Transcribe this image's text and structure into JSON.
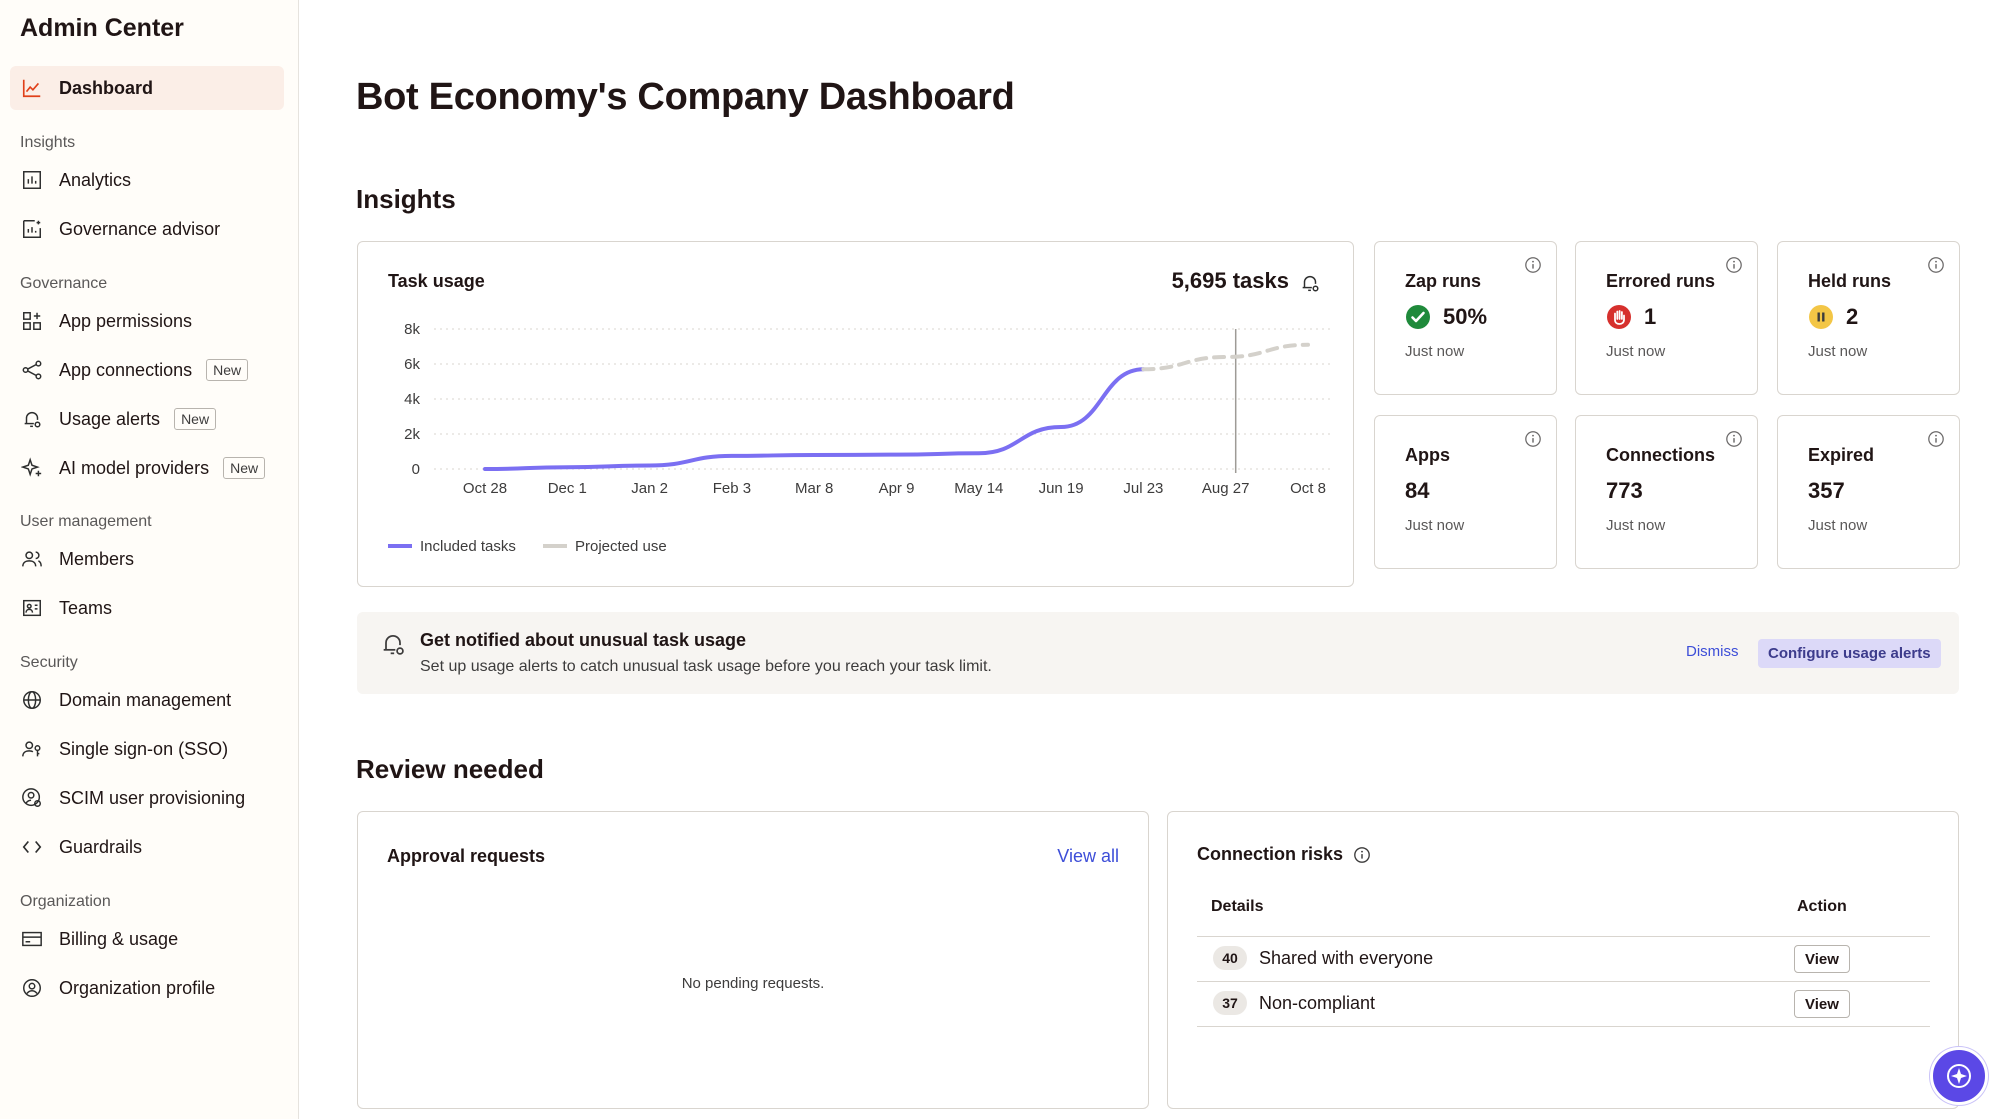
{
  "sidebar": {
    "title": "Admin Center",
    "dashboard": "Dashboard",
    "sections": {
      "insights": "Insights",
      "governance": "Governance",
      "user_management": "User management",
      "security": "Security",
      "organization": "Organization"
    },
    "items": {
      "analytics": "Analytics",
      "governance_advisor": "Governance advisor",
      "app_permissions": "App permissions",
      "app_connections": "App connections",
      "usage_alerts": "Usage alerts",
      "ai_model_providers": "AI model providers",
      "members": "Members",
      "teams": "Teams",
      "domain_management": "Domain management",
      "sso": "Single sign-on (SSO)",
      "scim": "SCIM user provisioning",
      "guardrails": "Guardrails",
      "billing": "Billing & usage",
      "org_profile": "Organization profile"
    },
    "badge_new": "New"
  },
  "page": {
    "title": "Bot Economy's Company Dashboard",
    "insights_heading": "Insights",
    "review_heading": "Review needed"
  },
  "task_usage": {
    "title": "Task usage",
    "total": "5,695 tasks"
  },
  "chart_data": {
    "type": "line",
    "x": [
      "Oct 28",
      "Dec 1",
      "Jan 2",
      "Feb 3",
      "Mar 8",
      "Apr 9",
      "May 14",
      "Jun 19",
      "Jul 23",
      "Aug 27",
      "Oct 8"
    ],
    "y_ticks": [
      "8k",
      "6k",
      "4k",
      "2k",
      "0"
    ],
    "ylim": [
      0,
      8000
    ],
    "series": [
      {
        "name": "Included tasks",
        "color": "#7b6ff2",
        "style": "solid",
        "points": [
          [
            "Oct 28",
            0
          ],
          [
            "Dec 1",
            100
          ],
          [
            "Jan 2",
            200
          ],
          [
            "Feb 3",
            750
          ],
          [
            "Mar 8",
            800
          ],
          [
            "Apr 9",
            820
          ],
          [
            "May 14",
            900
          ],
          [
            "Jun 19",
            2400
          ],
          [
            "Jul 23",
            5700
          ]
        ]
      },
      {
        "name": "Projected use",
        "color": "#d4d1cb",
        "style": "dashed",
        "points": [
          [
            "Jul 23",
            5700
          ],
          [
            "Aug 27",
            6400
          ],
          [
            "Oct 8",
            7100
          ]
        ]
      }
    ],
    "marker_at": "Aug 27",
    "grid": true,
    "legend": "bottom-left"
  },
  "stats": [
    {
      "label": "Zap runs",
      "value": "50%",
      "time": "Just now",
      "status": "success",
      "status_color": "#1f8a3b"
    },
    {
      "label": "Errored runs",
      "value": "1",
      "time": "Just now",
      "status": "error",
      "status_color": "#d6302d"
    },
    {
      "label": "Held runs",
      "value": "2",
      "time": "Just now",
      "status": "paused",
      "status_color": "#f3c646"
    },
    {
      "label": "Apps",
      "value": "84",
      "time": "Just now"
    },
    {
      "label": "Connections",
      "value": "773",
      "time": "Just now"
    },
    {
      "label": "Expired",
      "value": "357",
      "time": "Just now"
    }
  ],
  "banner": {
    "title": "Get notified about unusual task usage",
    "text": "Set up usage alerts to catch unusual task usage before you reach your task limit.",
    "dismiss": "Dismiss",
    "configure": "Configure usage alerts"
  },
  "approvals": {
    "title": "Approval requests",
    "view_all": "View all",
    "empty": "No pending requests."
  },
  "risks": {
    "title": "Connection risks",
    "col_details": "Details",
    "col_action": "Action",
    "rows": [
      {
        "count": "40",
        "detail": "Shared with everyone",
        "action": "View"
      },
      {
        "count": "37",
        "detail": "Non-compliant",
        "action": "View"
      }
    ]
  },
  "colors": {
    "accent": "#ff4f00",
    "link": "#3d4ed8",
    "assistant": "#5b48e6"
  }
}
